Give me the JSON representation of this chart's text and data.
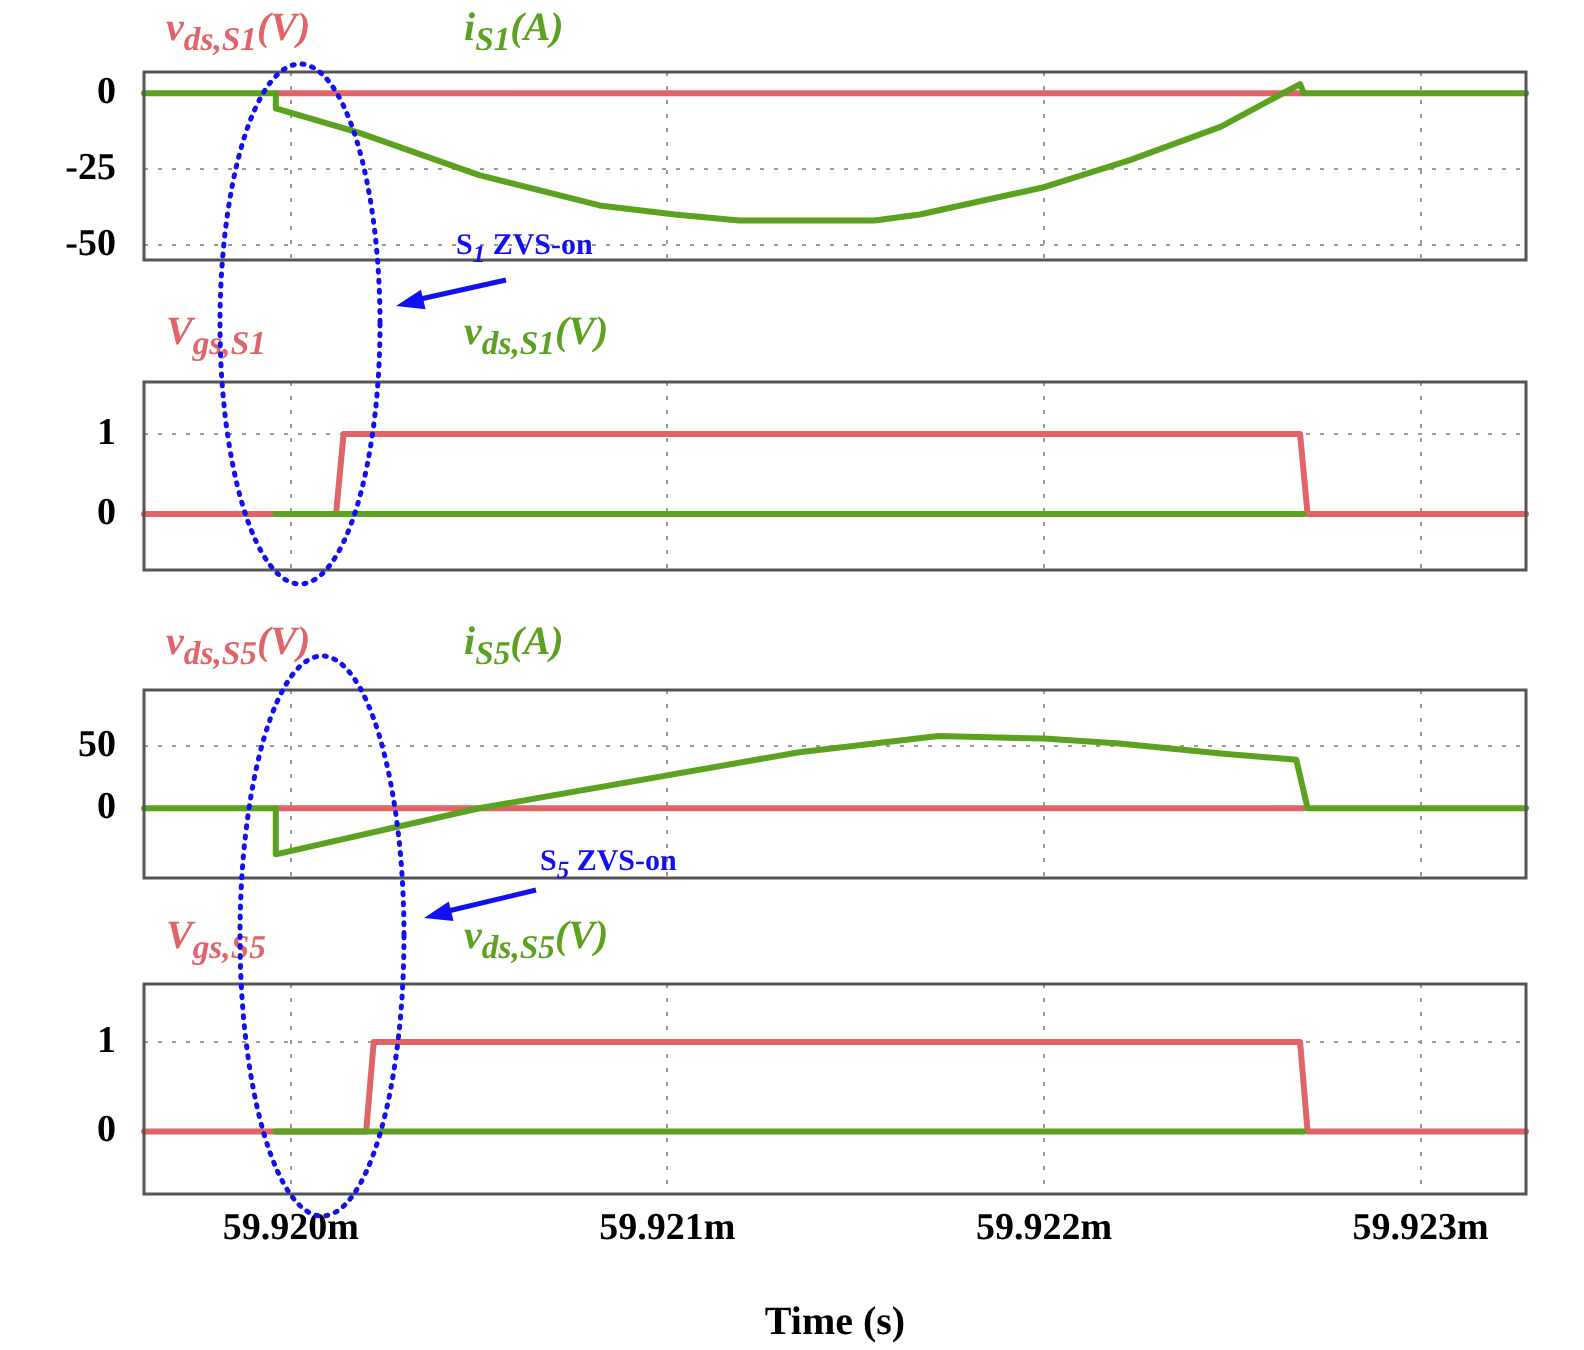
{
  "chart_data": [
    {
      "type": "line",
      "xlim": [
        59.91961,
        59.92328
      ],
      "xticks": [
        {
          "value": 59.92,
          "label": null
        },
        {
          "value": 59.921,
          "label": null
        },
        {
          "value": 59.922,
          "label": null
        },
        {
          "value": 59.923,
          "label": null
        }
      ],
      "ylim": [
        -55,
        7
      ],
      "yticks": [
        0,
        -25,
        -50
      ],
      "grid": true,
      "tick_labels": "y",
      "marker": "none",
      "line_style": "solid",
      "annotations": [
        "S$_{1}$ ZVS-on"
      ],
      "series": [
        {
          "name": "i$_{S1}$(A)",
          "color": "#5ba21f",
          "x": [
            59.91961,
            59.91996,
            59.91996,
            59.92018,
            59.9205,
            59.92082,
            59.92102,
            59.92119,
            59.92155,
            59.92167,
            59.922,
            59.92223,
            59.92247,
            59.92268,
            59.92269,
            59.92328
          ],
          "values": [
            0,
            0,
            -5,
            -13,
            -27,
            -37,
            -40,
            -42,
            -42,
            -40,
            -31,
            -22,
            -11,
            3,
            0,
            0
          ]
        },
        {
          "name": "v$_{ds,S1}$(V)",
          "color": "#e06468",
          "x": [
            59.91996,
            59.92269
          ],
          "values": [
            0,
            0
          ]
        }
      ]
    },
    {
      "type": "line",
      "xlim": [
        59.91961,
        59.92328
      ],
      "xticks": [
        {
          "value": 59.92,
          "label": null
        },
        {
          "value": 59.921,
          "label": null
        },
        {
          "value": 59.922,
          "label": null
        },
        {
          "value": 59.923,
          "label": null
        }
      ],
      "ylim": [
        -0.7,
        1.65
      ],
      "yticks": [
        0,
        1
      ],
      "grid": true,
      "tick_labels": "y",
      "marker": "none",
      "line_style": "solid",
      "series": [
        {
          "name": "v$_{ds,S1}$(V)",
          "color": "#5ba21f",
          "x": [
            59.91996,
            59.92269
          ],
          "values": [
            0,
            0
          ]
        },
        {
          "name": "V$_{gs,S1}$",
          "color": "#e06468",
          "x": [
            59.91961,
            59.92012,
            59.92014,
            59.92268,
            59.9227,
            59.92328
          ],
          "values": [
            0,
            0,
            1,
            1,
            0,
            0
          ]
        }
      ]
    },
    {
      "type": "line",
      "xlim": [
        59.91961,
        59.92328
      ],
      "xticks": [
        {
          "value": 59.92,
          "label": null
        },
        {
          "value": 59.921,
          "label": null
        },
        {
          "value": 59.922,
          "label": null
        },
        {
          "value": 59.923,
          "label": null
        }
      ],
      "ylim": [
        -56,
        95
      ],
      "yticks": [
        0,
        50
      ],
      "grid": true,
      "tick_labels": "y",
      "marker": "none",
      "line_style": "solid",
      "annotations": [
        "S$_{5}$ ZVS-on"
      ],
      "series": [
        {
          "name": "i$_{S5}$(A)",
          "color": "#5ba21f",
          "x": [
            59.91961,
            59.91996,
            59.91996,
            59.9205,
            59.92135,
            59.92172,
            59.922,
            59.9222,
            59.92247,
            59.92267,
            59.9227,
            59.92328
          ],
          "values": [
            0,
            0,
            -37,
            0,
            45,
            58,
            56,
            52,
            44,
            39,
            0,
            0
          ]
        },
        {
          "name": "v$_{ds,S5}$(V)",
          "color": "#e06468",
          "x": [
            59.91996,
            59.92269
          ],
          "values": [
            0,
            0
          ]
        }
      ]
    },
    {
      "type": "line",
      "xlabel": "Time (s)",
      "xlim": [
        59.91961,
        59.92328
      ],
      "xticks": [
        {
          "value": 59.92,
          "label": "59.920m"
        },
        {
          "value": 59.921,
          "label": "59.921m"
        },
        {
          "value": 59.922,
          "label": "59.922m"
        },
        {
          "value": 59.923,
          "label": "59.923m"
        }
      ],
      "ylim": [
        -0.7,
        1.65
      ],
      "yticks": [
        0,
        1
      ],
      "grid": true,
      "marker": "none",
      "line_style": "solid",
      "series": [
        {
          "name": "v$_{ds,S5}$(V)",
          "color": "#5ba21f",
          "x": [
            59.91996,
            59.92269
          ],
          "values": [
            0,
            0
          ]
        },
        {
          "name": "V$_{gs,S5}$",
          "color": "#e06468",
          "x": [
            59.91961,
            59.9202,
            59.92022,
            59.92268,
            59.9227,
            59.92328
          ],
          "values": [
            0,
            0,
            1,
            1,
            0,
            0
          ]
        }
      ]
    }
  ]
}
